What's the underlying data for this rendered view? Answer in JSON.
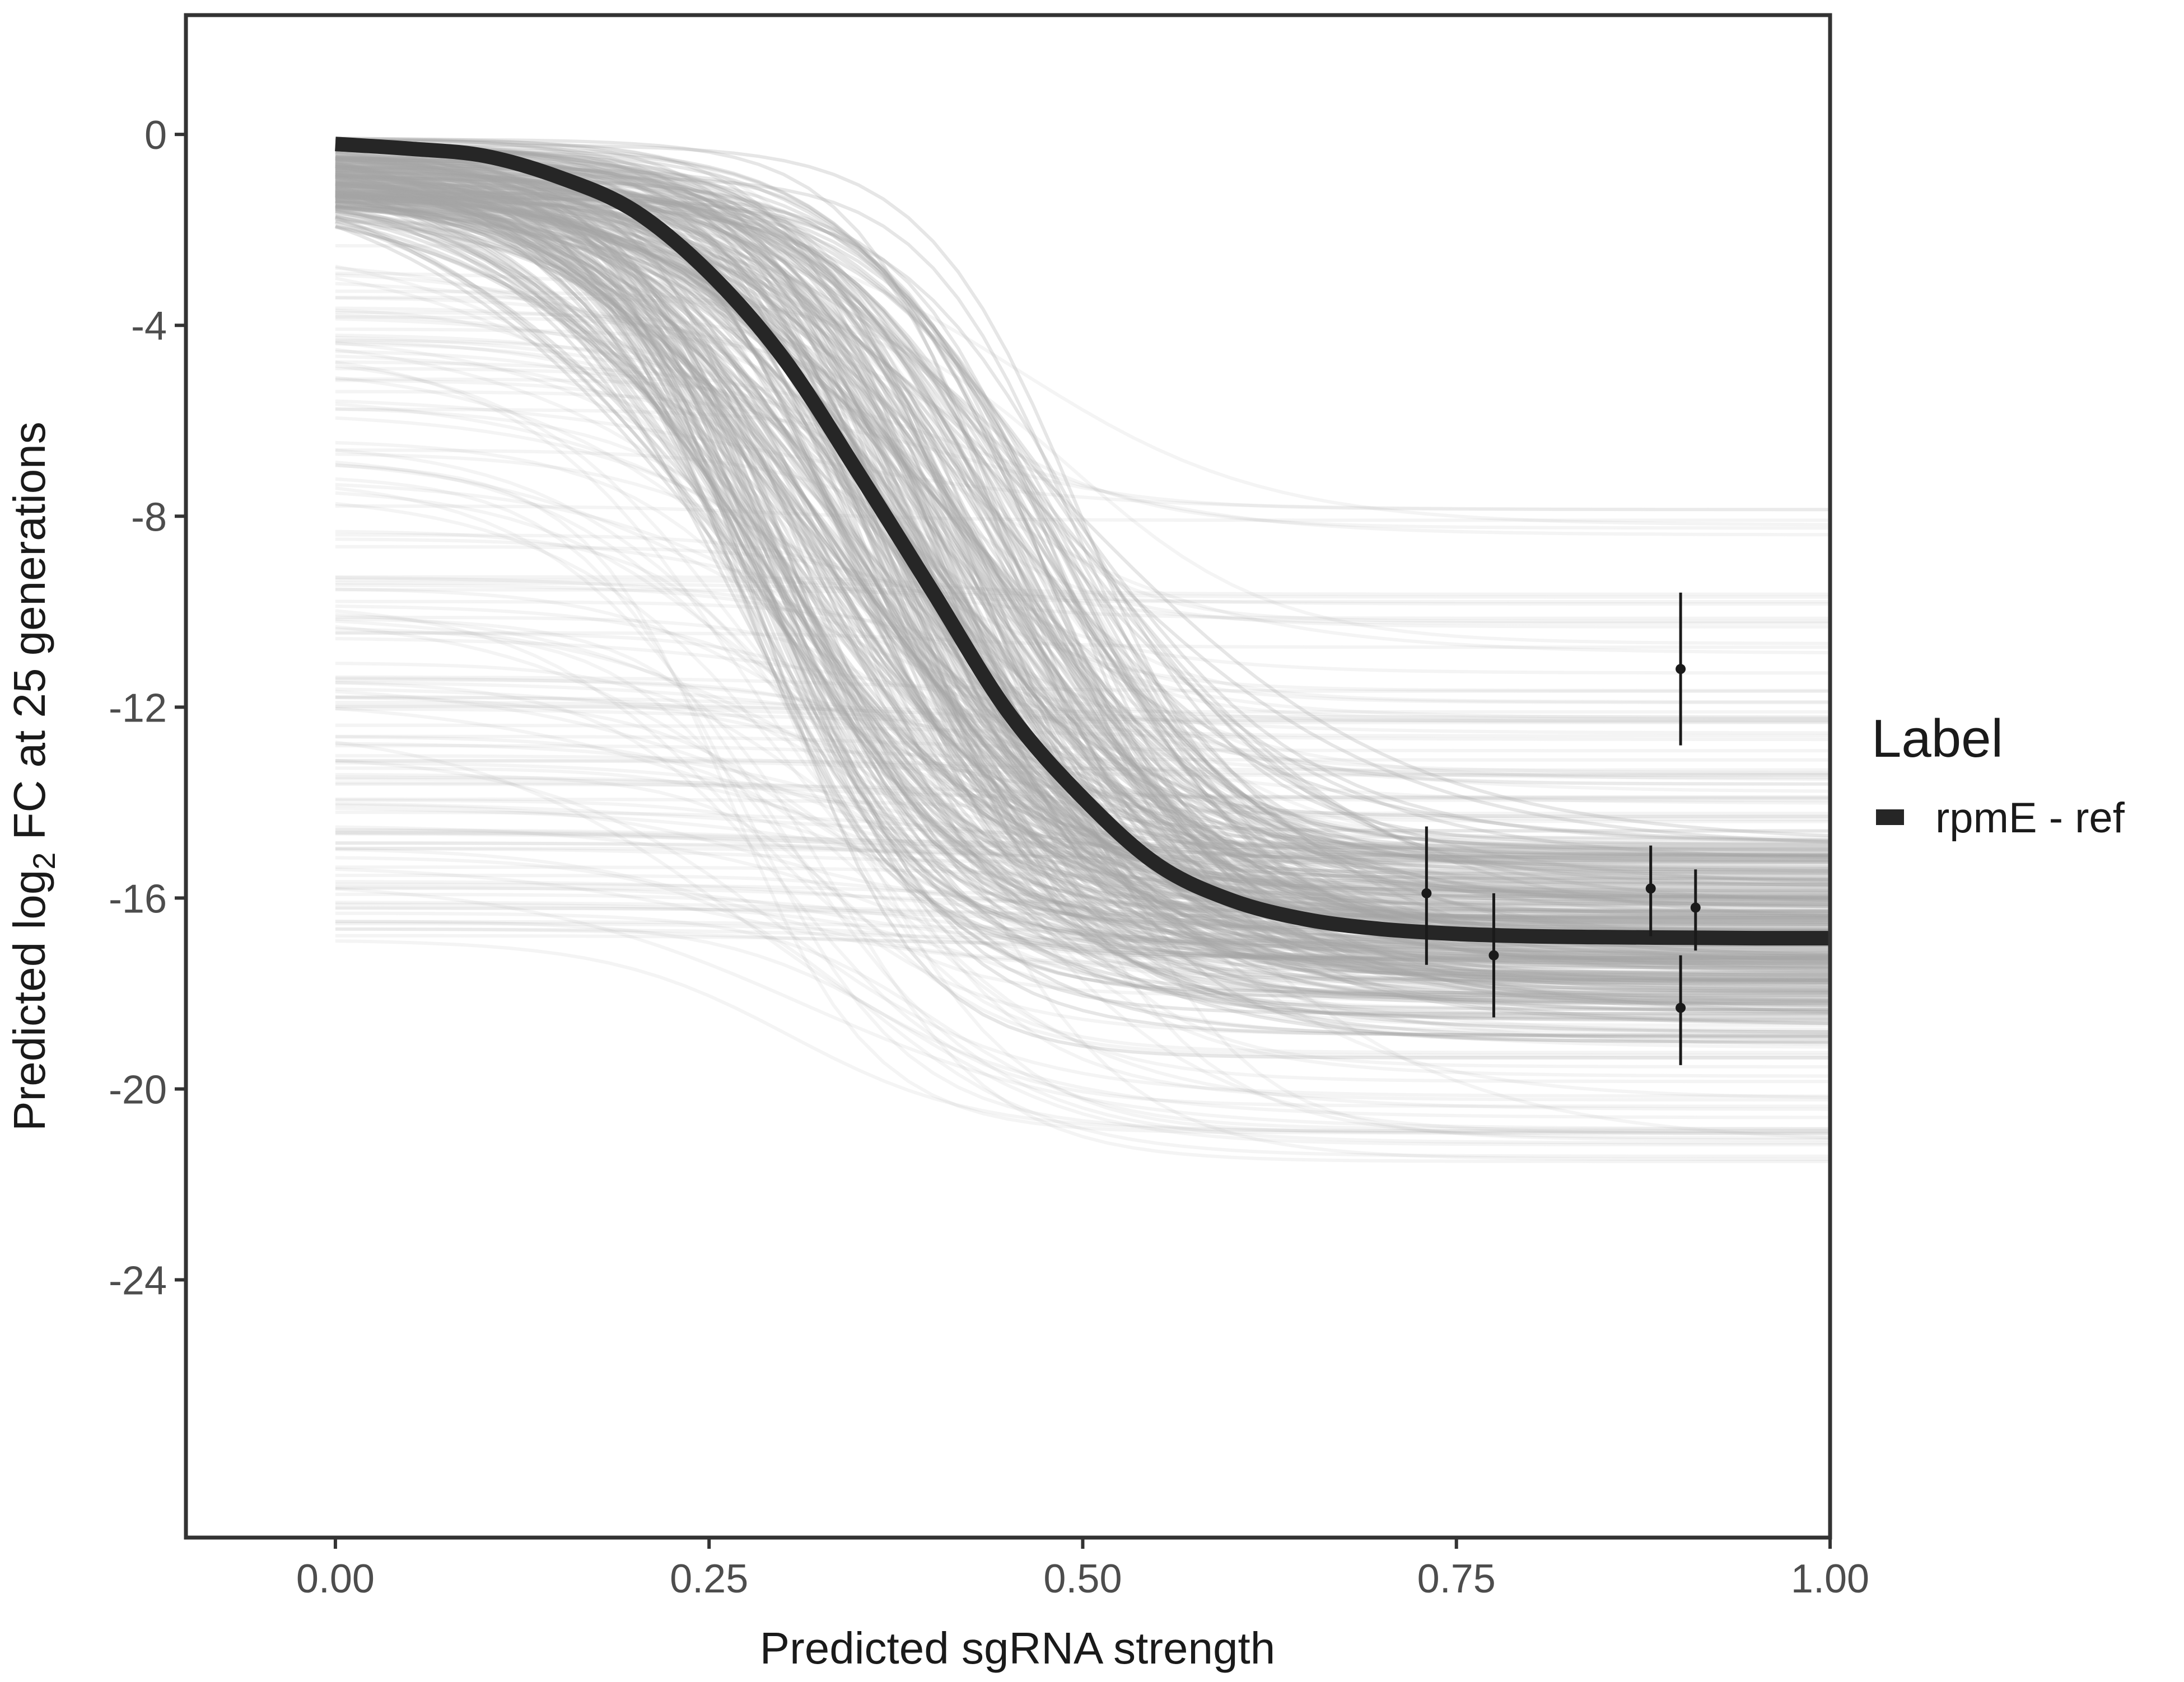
{
  "chart_data": {
    "type": "line",
    "xlabel": "Predicted sgRNA strength",
    "ylabel_prefix": "Predicted  log",
    "ylabel_subscript": "2",
    "ylabel_suffix": " FC at 25 generations",
    "xlim": [
      -0.1,
      1.0
    ],
    "ylim": [
      -29.4,
      2.5
    ],
    "x_ticks": [
      0.0,
      0.25,
      0.5,
      0.75,
      1.0
    ],
    "x_tick_labels": [
      "0.00",
      "0.25",
      "0.50",
      "0.75",
      "1.00"
    ],
    "y_ticks": [
      0,
      -4,
      -8,
      -12,
      -16,
      -20,
      -24
    ],
    "y_tick_labels": [
      "0",
      "-4",
      "-8",
      "-12",
      "-16",
      "-20",
      "-24"
    ],
    "grid": false,
    "legend": {
      "title": "Label",
      "position": "right",
      "entries": [
        {
          "name": "rpmE - ref",
          "color": "#262626"
        }
      ]
    },
    "fit_curve": {
      "name": "rpmE - ref",
      "color": "#262626",
      "x": [
        0.0,
        0.05,
        0.1,
        0.15,
        0.2,
        0.25,
        0.3,
        0.35,
        0.4,
        0.45,
        0.5,
        0.55,
        0.6,
        0.65,
        0.7,
        0.75,
        0.8,
        0.85,
        0.9,
        0.95,
        1.0
      ],
      "y": [
        -0.2,
        -0.3,
        -0.45,
        -0.9,
        -1.6,
        -2.9,
        -4.7,
        -7.1,
        -9.6,
        -12.1,
        -13.9,
        -15.3,
        -16.05,
        -16.45,
        -16.65,
        -16.75,
        -16.8,
        -16.82,
        -16.83,
        -16.84,
        -16.84
      ]
    },
    "posterior_draws": {
      "color": "#a6a6a6",
      "count": 400,
      "x_range": [
        0.0,
        1.0
      ],
      "start_y_range": [
        -16.9,
        -0.05
      ],
      "end_y_range": [
        -21.6,
        -7.8
      ]
    },
    "points": [
      {
        "x": 0.73,
        "y": -15.9,
        "ymin": -17.4,
        "ymax": -14.5
      },
      {
        "x": 0.775,
        "y": -17.2,
        "ymin": -18.5,
        "ymax": -15.9
      },
      {
        "x": 0.88,
        "y": -15.8,
        "ymin": -16.8,
        "ymax": -14.9
      },
      {
        "x": 0.9,
        "y": -11.2,
        "ymin": -12.8,
        "ymax": -9.6
      },
      {
        "x": 0.9,
        "y": -18.3,
        "ymin": -19.5,
        "ymax": -17.2
      },
      {
        "x": 0.91,
        "y": -16.2,
        "ymin": -17.1,
        "ymax": -15.4
      }
    ]
  }
}
